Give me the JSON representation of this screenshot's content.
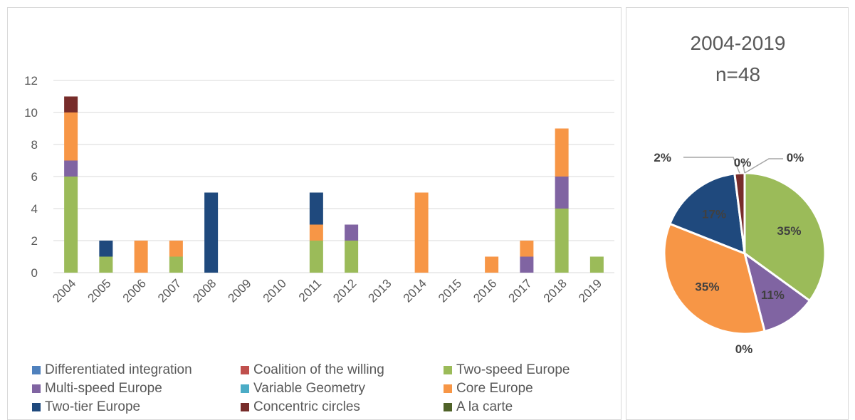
{
  "chart_data": [
    {
      "type": "bar",
      "stacked": true,
      "categories": [
        "2004",
        "2005",
        "2006",
        "2007",
        "2008",
        "2009",
        "2010",
        "2011",
        "2012",
        "2013",
        "2014",
        "2015",
        "2016",
        "2017",
        "2018",
        "2019"
      ],
      "ylim": [
        0,
        12
      ],
      "yticks": [
        0,
        2,
        4,
        6,
        8,
        10,
        12
      ],
      "grid": true,
      "legend_position": "bottom",
      "series": [
        {
          "name": "Differentiated integration",
          "color": "#4f81bd",
          "values": [
            0,
            0,
            0,
            0,
            0,
            0,
            0,
            0,
            0,
            0,
            0,
            0,
            0,
            0,
            0,
            0
          ]
        },
        {
          "name": "Coalition of the willing",
          "color": "#c0504d",
          "values": [
            0,
            0,
            0,
            0,
            0,
            0,
            0,
            0,
            0,
            0,
            0,
            0,
            0,
            0,
            0,
            0
          ]
        },
        {
          "name": "Two-speed Europe",
          "color": "#9bbb59",
          "values": [
            6,
            1,
            0,
            1,
            0,
            0,
            0,
            2,
            2,
            0,
            0,
            0,
            0,
            0,
            4,
            1
          ]
        },
        {
          "name": "Multi-speed Europe",
          "color": "#8064a2",
          "values": [
            1,
            0,
            0,
            0,
            0,
            0,
            0,
            0,
            1,
            0,
            0,
            0,
            0,
            1,
            2,
            0
          ]
        },
        {
          "name": "Variable Geometry",
          "color": "#4bacc6",
          "values": [
            0,
            0,
            0,
            0,
            0,
            0,
            0,
            0,
            0,
            0,
            0,
            0,
            0,
            0,
            0,
            0
          ]
        },
        {
          "name": "Core Europe",
          "color": "#f79646",
          "values": [
            3,
            0,
            2,
            1,
            0,
            0,
            0,
            1,
            0,
            0,
            5,
            0,
            1,
            1,
            3,
            0
          ]
        },
        {
          "name": "Two-tier Europe",
          "color": "#1f497d",
          "values": [
            0,
            1,
            0,
            0,
            5,
            0,
            0,
            2,
            0,
            0,
            0,
            0,
            0,
            0,
            0,
            0
          ]
        },
        {
          "name": "Concentric circles",
          "color": "#772c2a",
          "values": [
            1,
            0,
            0,
            0,
            0,
            0,
            0,
            0,
            0,
            0,
            0,
            0,
            0,
            0,
            0,
            0
          ]
        },
        {
          "name": "A la carte",
          "color": "#4f6228",
          "values": [
            0,
            0,
            0,
            0,
            0,
            0,
            0,
            0,
            0,
            0,
            0,
            0,
            0,
            0,
            0,
            0
          ]
        }
      ]
    },
    {
      "type": "pie",
      "title_lines": [
        "2004-2019",
        "n=48"
      ],
      "slices": [
        {
          "category": "Two-speed Europe",
          "value": 35,
          "label": "35%",
          "color": "#9bbb59"
        },
        {
          "category": "Multi-speed Europe",
          "value": 11,
          "label": "11%",
          "color": "#8064a2"
        },
        {
          "category": "Variable Geometry",
          "value": 0,
          "label": "0%",
          "color": "#4bacc6"
        },
        {
          "category": "Core Europe",
          "value": 35,
          "label": "35%",
          "color": "#f79646"
        },
        {
          "category": "Two-tier Europe",
          "value": 17,
          "label": "17%",
          "color": "#1f497d"
        },
        {
          "category": "Concentric circles",
          "value": 2,
          "label": "2%",
          "color": "#772c2a"
        },
        {
          "category": "A la carte",
          "value": 0,
          "label": "0%",
          "color": "#4f6228"
        },
        {
          "category": "Differentiated integration",
          "value": 0,
          "label": "0%",
          "color": "#4f81bd"
        }
      ]
    }
  ]
}
